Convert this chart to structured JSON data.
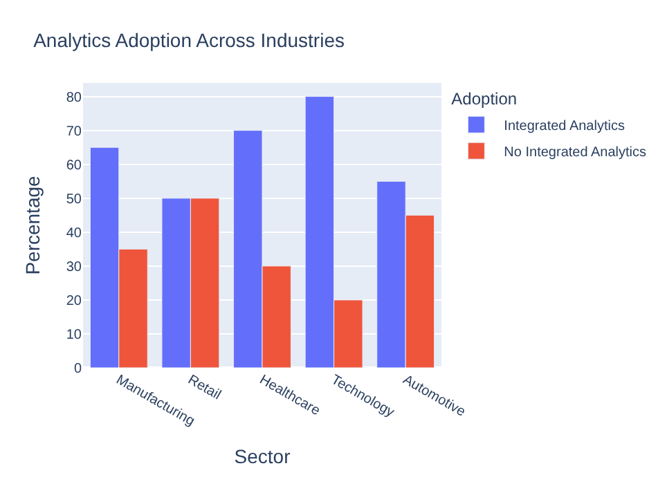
{
  "chart_data": {
    "type": "bar",
    "title": "Analytics Adoption Across Industries",
    "xlabel": "Sector",
    "ylabel": "Percentage",
    "legend_title": "Adoption",
    "categories": [
      "Manufacturing",
      "Retail",
      "Healthcare",
      "Technology",
      "Automotive"
    ],
    "series": [
      {
        "name": "Integrated Analytics",
        "color": "#636efa",
        "values": [
          65,
          50,
          70,
          80,
          55
        ]
      },
      {
        "name": "No Integrated Analytics",
        "color": "#ef553b",
        "values": [
          35,
          50,
          30,
          20,
          45
        ]
      }
    ],
    "ylim": [
      0,
      84
    ],
    "yticks": [
      0,
      10,
      20,
      30,
      40,
      50,
      60,
      70,
      80
    ],
    "grid": "y",
    "legend": "top right"
  }
}
